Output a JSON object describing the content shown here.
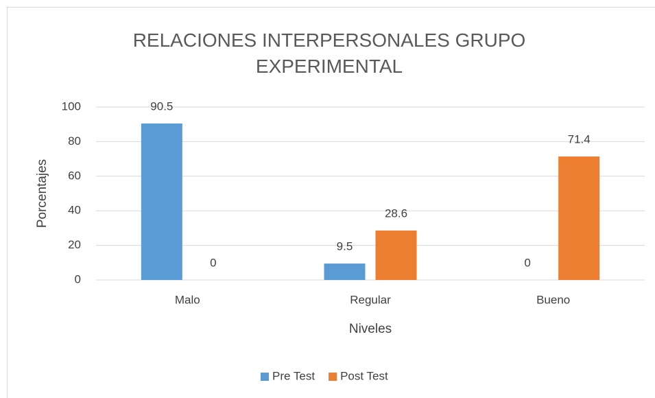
{
  "chart_data": {
    "type": "bar",
    "title": "RELACIONES INTERPERSONALES GRUPO EXPERIMENTAL",
    "categories": [
      "Malo",
      "Regular",
      "Bueno"
    ],
    "series": [
      {
        "name": "Pre Test",
        "color": "#5b9bd5",
        "values": [
          90.5,
          9.5,
          0
        ]
      },
      {
        "name": "Post Test",
        "color": "#ed7d31",
        "values": [
          0,
          28.6,
          71.4
        ]
      }
    ],
    "xlabel": "Niveles",
    "ylabel": "Porcentajes",
    "ylim": [
      0,
      100
    ],
    "yticks": [
      0,
      20,
      40,
      60,
      80,
      100
    ],
    "grid": true,
    "legend": "bottom"
  }
}
